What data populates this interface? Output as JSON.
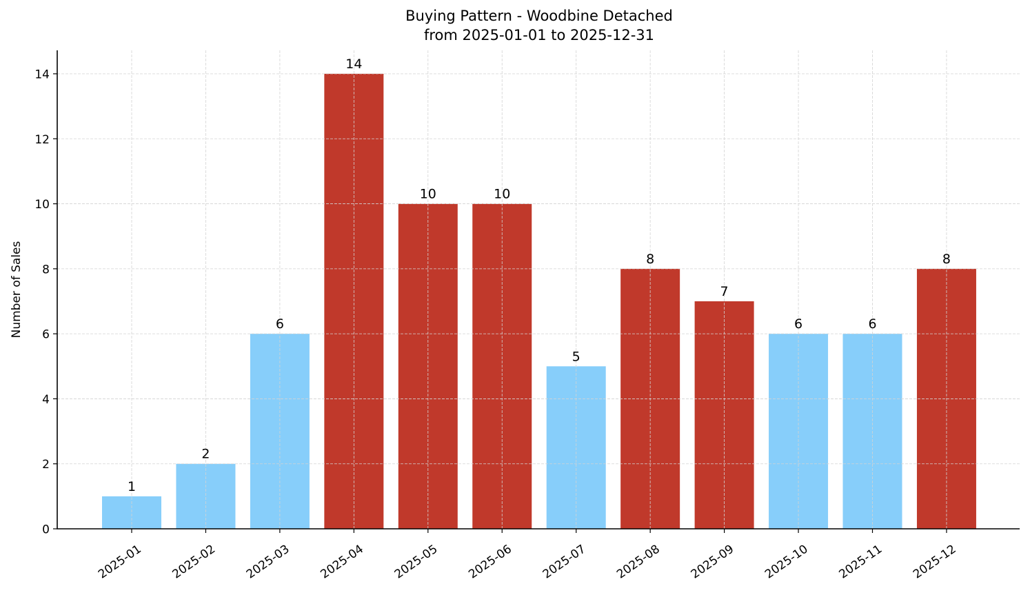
{
  "chart_data": {
    "type": "bar",
    "title": "Buying Pattern - Woodbine Detached",
    "subtitle": "from 2025-01-01 to 2025-12-31",
    "xlabel": "",
    "ylabel": "Number of Sales",
    "categories": [
      "2025-01",
      "2025-02",
      "2025-03",
      "2025-04",
      "2025-05",
      "2025-06",
      "2025-07",
      "2025-08",
      "2025-09",
      "2025-10",
      "2025-11",
      "2025-12"
    ],
    "values": [
      1,
      2,
      6,
      14,
      10,
      10,
      5,
      8,
      7,
      6,
      6,
      8
    ],
    "bar_colors": [
      "#87CEFA",
      "#87CEFA",
      "#87CEFA",
      "#C0392B",
      "#C0392B",
      "#C0392B",
      "#87CEFA",
      "#C0392B",
      "#C0392B",
      "#87CEFA",
      "#87CEFA",
      "#C0392B"
    ],
    "data_labels": [
      "1",
      "2",
      "6",
      "14",
      "10",
      "10",
      "5",
      "8",
      "7",
      "6",
      "6",
      "8"
    ],
    "ylim": [
      0,
      14.7
    ],
    "yticks": [
      0,
      2,
      4,
      6,
      8,
      10,
      12,
      14
    ],
    "grid": true,
    "legend": null
  },
  "colors": {
    "high": "#C0392B",
    "low": "#87CEFA",
    "grid": "#d3d3d3",
    "axis": "#000000"
  }
}
